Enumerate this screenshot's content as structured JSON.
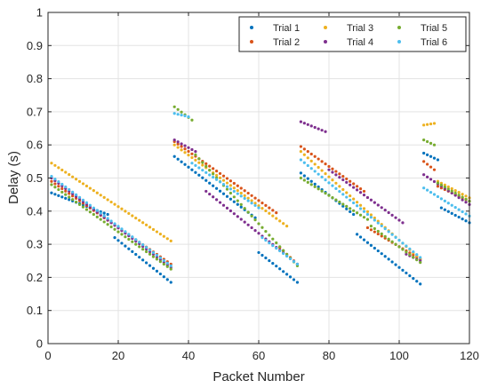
{
  "chart_data": {
    "type": "scatter",
    "title": "",
    "xlabel": "Packet Number",
    "ylabel": "Delay (s)",
    "xlim": [
      0,
      120
    ],
    "ylim": [
      0,
      1
    ],
    "xticks": [
      "0",
      "20",
      "40",
      "60",
      "80",
      "100",
      "120"
    ],
    "yticks": [
      "0",
      "0.1",
      "0.2",
      "0.3",
      "0.4",
      "0.5",
      "0.6",
      "0.7",
      "0.8",
      "0.9",
      "1"
    ],
    "grid": true,
    "legend_position": "top-right",
    "series": [
      {
        "name": "Trial 1",
        "color": "#0072BD",
        "segments": [
          {
            "x_start": 1,
            "x_end": 17,
            "y_start": 0.455,
            "y_end": 0.39
          },
          {
            "x_start": 19,
            "x_end": 35,
            "y_start": 0.32,
            "y_end": 0.185
          },
          {
            "x_start": 36,
            "x_end": 59,
            "y_start": 0.565,
            "y_end": 0.38
          },
          {
            "x_start": 60,
            "x_end": 71,
            "y_start": 0.275,
            "y_end": 0.185
          },
          {
            "x_start": 72,
            "x_end": 87,
            "y_start": 0.515,
            "y_end": 0.39
          },
          {
            "x_start": 88,
            "x_end": 106,
            "y_start": 0.33,
            "y_end": 0.18
          },
          {
            "x_start": 107,
            "x_end": 111,
            "y_start": 0.575,
            "y_end": 0.555
          },
          {
            "x_start": 112,
            "x_end": 120,
            "y_start": 0.41,
            "y_end": 0.365
          }
        ]
      },
      {
        "name": "Trial 2",
        "color": "#D95319",
        "segments": [
          {
            "x_start": 1,
            "x_end": 35,
            "y_start": 0.49,
            "y_end": 0.24
          },
          {
            "x_start": 36,
            "x_end": 65,
            "y_start": 0.61,
            "y_end": 0.395
          },
          {
            "x_start": 66,
            "x_end": 71,
            "y_start": 0.29,
            "y_end": 0.24
          },
          {
            "x_start": 72,
            "x_end": 90,
            "y_start": 0.595,
            "y_end": 0.46
          },
          {
            "x_start": 91,
            "x_end": 106,
            "y_start": 0.35,
            "y_end": 0.255
          },
          {
            "x_start": 107,
            "x_end": 110,
            "y_start": 0.55,
            "y_end": 0.525
          },
          {
            "x_start": 111,
            "x_end": 120,
            "y_start": 0.475,
            "y_end": 0.43
          }
        ]
      },
      {
        "name": "Trial 3",
        "color": "#EDB120",
        "segments": [
          {
            "x_start": 1,
            "x_end": 35,
            "y_start": 0.545,
            "y_end": 0.31
          },
          {
            "x_start": 36,
            "x_end": 68,
            "y_start": 0.6,
            "y_end": 0.355
          },
          {
            "x_start": 72,
            "x_end": 106,
            "y_start": 0.58,
            "y_end": 0.255
          },
          {
            "x_start": 107,
            "x_end": 110,
            "y_start": 0.66,
            "y_end": 0.665
          },
          {
            "x_start": 111,
            "x_end": 120,
            "y_start": 0.49,
            "y_end": 0.44
          }
        ]
      },
      {
        "name": "Trial 4",
        "color": "#7E2F8E",
        "segments": [
          {
            "x_start": 1,
            "x_end": 35,
            "y_start": 0.5,
            "y_end": 0.23
          },
          {
            "x_start": 36,
            "x_end": 42,
            "y_start": 0.615,
            "y_end": 0.58
          },
          {
            "x_start": 45,
            "x_end": 71,
            "y_start": 0.46,
            "y_end": 0.24
          },
          {
            "x_start": 72,
            "x_end": 79,
            "y_start": 0.67,
            "y_end": 0.64
          },
          {
            "x_start": 80,
            "x_end": 101,
            "y_start": 0.525,
            "y_end": 0.365
          },
          {
            "x_start": 102,
            "x_end": 106,
            "y_start": 0.27,
            "y_end": 0.25
          },
          {
            "x_start": 107,
            "x_end": 120,
            "y_start": 0.51,
            "y_end": 0.42
          }
        ]
      },
      {
        "name": "Trial 5",
        "color": "#77AC30",
        "segments": [
          {
            "x_start": 1,
            "x_end": 35,
            "y_start": 0.48,
            "y_end": 0.225
          },
          {
            "x_start": 36,
            "x_end": 41,
            "y_start": 0.715,
            "y_end": 0.675
          },
          {
            "x_start": 42,
            "x_end": 71,
            "y_start": 0.57,
            "y_end": 0.235
          },
          {
            "x_start": 72,
            "x_end": 91,
            "y_start": 0.5,
            "y_end": 0.375
          },
          {
            "x_start": 92,
            "x_end": 106,
            "y_start": 0.355,
            "y_end": 0.245
          },
          {
            "x_start": 107,
            "x_end": 110,
            "y_start": 0.615,
            "y_end": 0.6
          },
          {
            "x_start": 111,
            "x_end": 120,
            "y_start": 0.485,
            "y_end": 0.43
          }
        ]
      },
      {
        "name": "Trial 6",
        "color": "#4DBEEE",
        "segments": [
          {
            "x_start": 1,
            "x_end": 35,
            "y_start": 0.505,
            "y_end": 0.235
          },
          {
            "x_start": 36,
            "x_end": 40,
            "y_start": 0.695,
            "y_end": 0.685
          },
          {
            "x_start": 41,
            "x_end": 60,
            "y_start": 0.545,
            "y_end": 0.41
          },
          {
            "x_start": 61,
            "x_end": 71,
            "y_start": 0.32,
            "y_end": 0.24
          },
          {
            "x_start": 72,
            "x_end": 106,
            "y_start": 0.555,
            "y_end": 0.26
          },
          {
            "x_start": 107,
            "x_end": 120,
            "y_start": 0.47,
            "y_end": 0.385
          }
        ]
      }
    ]
  }
}
